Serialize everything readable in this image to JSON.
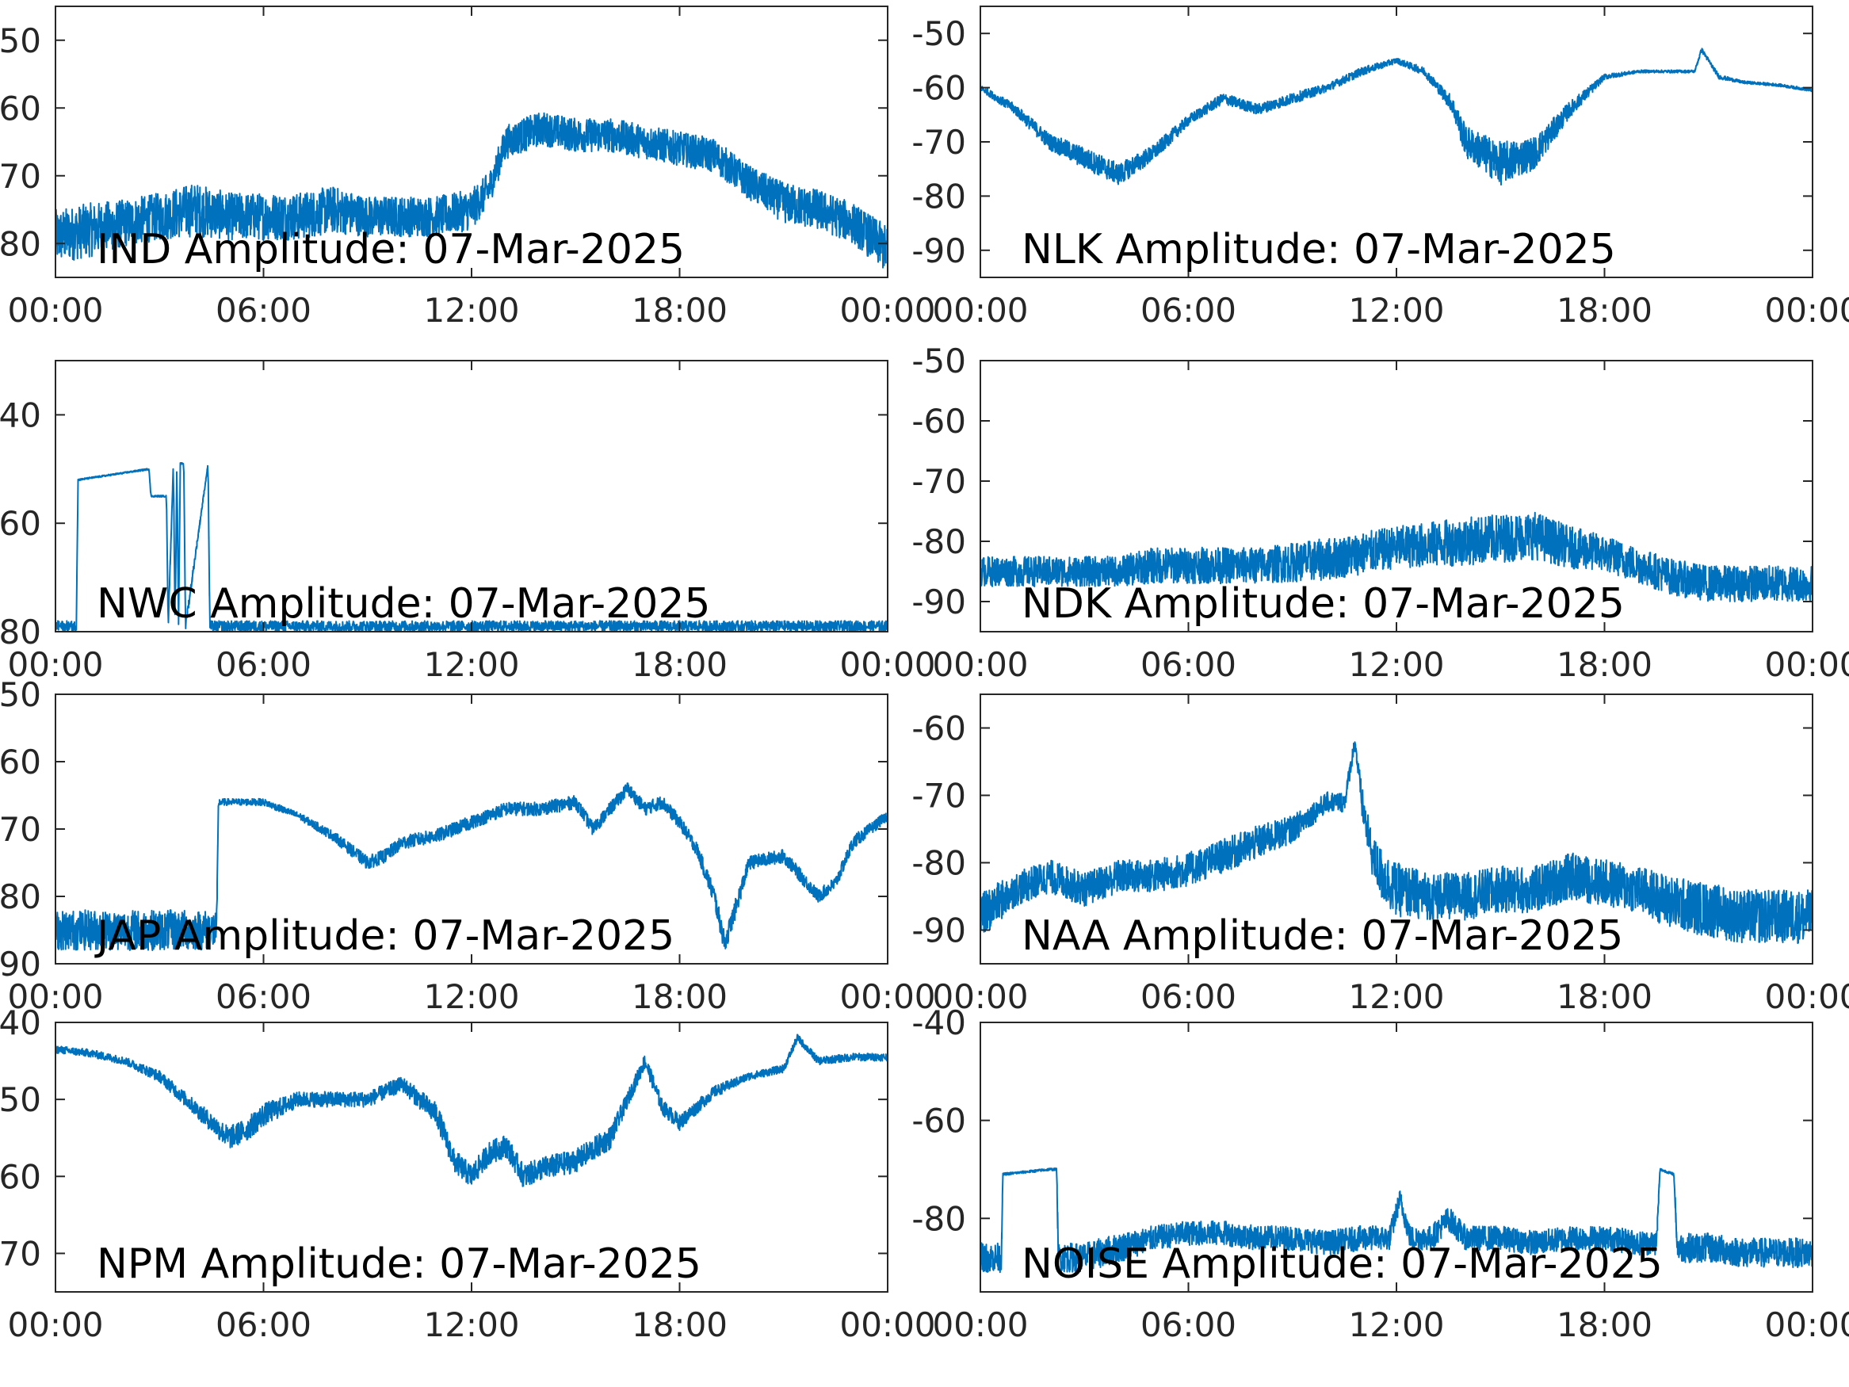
{
  "figure": {
    "line_color": "#0072BD",
    "axis_color": "#262626",
    "background": "#FFFFFF"
  },
  "chart_data": [
    {
      "type": "line",
      "title": "IND Amplitude: 07-Mar-2025",
      "xlabel": "",
      "ylabel": "",
      "xlim": [
        "00:00",
        "00:00"
      ],
      "xticks": [
        "00:00",
        "06:00",
        "12:00",
        "18:00",
        "00:00"
      ],
      "ylim": [
        -85,
        -45
      ],
      "yticks": [
        -50,
        -60,
        -70,
        -80
      ],
      "ytick_labels": [
        "50",
        "60",
        "70",
        "80"
      ],
      "grid": false,
      "series": [
        {
          "x": [
            0,
            1,
            2,
            3,
            4,
            5,
            6,
            7,
            8,
            9,
            10,
            11,
            12,
            12.5,
            13,
            14,
            15,
            16,
            17,
            18,
            19,
            20,
            21,
            22,
            23,
            24
          ],
          "y": [
            -79,
            -78,
            -77,
            -76,
            -75,
            -76,
            -76,
            -76,
            -75,
            -76,
            -76,
            -76,
            -75,
            -72,
            -65,
            -63,
            -64,
            -64,
            -65,
            -66,
            -67,
            -71,
            -74,
            -75,
            -77,
            -81
          ],
          "band": [
            8,
            8,
            7,
            7,
            8,
            7,
            7,
            7,
            7,
            6,
            6,
            6,
            6,
            5,
            5,
            5,
            5,
            5,
            5,
            5,
            5,
            5,
            6,
            6,
            6,
            7
          ]
        }
      ]
    },
    {
      "type": "line",
      "title": "NLK Amplitude: 07-Mar-2025",
      "xlabel": "",
      "ylabel": "",
      "xlim": [
        "00:00",
        "00:00"
      ],
      "xticks": [
        "00:00",
        "06:00",
        "12:00",
        "18:00",
        "00:00"
      ],
      "ylim": [
        -95,
        -45
      ],
      "yticks": [
        -50,
        -60,
        -70,
        -80,
        -90
      ],
      "ytick_labels": [
        "-50",
        "-60",
        "-70",
        "-80",
        "-90"
      ],
      "grid": false,
      "series": [
        {
          "x": [
            0,
            1,
            2,
            3,
            4,
            5,
            6,
            7,
            8,
            9,
            10,
            11,
            12,
            12.8,
            13.2,
            13.6,
            14,
            15,
            16,
            17,
            18,
            19,
            20,
            20.6,
            20.8,
            21.3,
            22,
            23,
            24
          ],
          "y": [
            -60,
            -64,
            -70,
            -73,
            -76,
            -72,
            -66,
            -62,
            -64,
            -62,
            -60,
            -57,
            -55,
            -57,
            -60,
            -63,
            -70,
            -74,
            -72,
            -64,
            -58,
            -57,
            -57,
            -57,
            -53,
            -58,
            -59,
            -59.5,
            -60.5
          ],
          "band": [
            1,
            2,
            3,
            4,
            4,
            3,
            2,
            2,
            2,
            2,
            1.5,
            1.5,
            1,
            1.5,
            2,
            3,
            6,
            8,
            6,
            3,
            1,
            0.5,
            0.5,
            0.5,
            0.8,
            0.8,
            0.5,
            0.5,
            0.5
          ]
        }
      ]
    },
    {
      "type": "line",
      "title": "NWC Amplitude: 07-Mar-2025",
      "xlabel": "",
      "ylabel": "",
      "xlim": [
        "00:00",
        "00:00"
      ],
      "xticks": [
        "00:00",
        "06:00",
        "12:00",
        "18:00",
        "00:00"
      ],
      "ylim": [
        -80,
        -30
      ],
      "yticks": [
        -40,
        -60,
        -80
      ],
      "ytick_labels": [
        "40",
        "60",
        "80"
      ],
      "grid": false,
      "series": [
        {
          "x": [
            0,
            0.6,
            0.65,
            2.7,
            2.75,
            3.2,
            3.25,
            3.4,
            3.45,
            3.5,
            3.55,
            3.6,
            3.7,
            3.75,
            4.4,
            4.45,
            24
          ],
          "y": [
            -79,
            -79,
            -52,
            -50,
            -55,
            -55,
            -79,
            -49,
            -79,
            -49,
            -79,
            -49,
            -49,
            -79,
            -49,
            -79,
            -79
          ],
          "band": [
            2,
            2,
            0.3,
            0.3,
            0.3,
            0.3,
            2,
            0.3,
            2,
            0.3,
            2,
            0.3,
            0.3,
            2,
            0.3,
            2,
            2
          ]
        }
      ]
    },
    {
      "type": "line",
      "title": "NDK Amplitude: 07-Mar-2025",
      "xlabel": "",
      "ylabel": "",
      "xlim": [
        "00:00",
        "00:00"
      ],
      "xticks": [
        "00:00",
        "06:00",
        "12:00",
        "18:00",
        "00:00"
      ],
      "ylim": [
        -95,
        -50
      ],
      "yticks": [
        -50,
        -60,
        -70,
        -80,
        -90
      ],
      "ytick_labels": [
        "-50",
        "-60",
        "-70",
        "-80",
        "-90"
      ],
      "grid": false,
      "series": [
        {
          "x": [
            0,
            2,
            4,
            5,
            6,
            8,
            10,
            12,
            14,
            16,
            17,
            18,
            19,
            20,
            21,
            22,
            23,
            24
          ],
          "y": [
            -85,
            -85,
            -85,
            -84,
            -84,
            -84,
            -83,
            -81,
            -80,
            -79,
            -81,
            -82,
            -84,
            -86,
            -87,
            -87,
            -87,
            -87
          ],
          "band": [
            5,
            5,
            5,
            6,
            6,
            6,
            7,
            7,
            8,
            8,
            7,
            6,
            6,
            6,
            6,
            6,
            6,
            6
          ]
        }
      ]
    },
    {
      "type": "line",
      "title": "JAP Amplitude: 07-Mar-2025",
      "xlabel": "",
      "ylabel": "",
      "xlim": [
        "00:00",
        "00:00"
      ],
      "xticks": [
        "00:00",
        "06:00",
        "12:00",
        "18:00",
        "00:00"
      ],
      "ylim": [
        -90,
        -50
      ],
      "yticks": [
        -50,
        -60,
        -70,
        -80,
        -90
      ],
      "ytick_labels": [
        "50",
        "60",
        "70",
        "80",
        "90"
      ],
      "grid": false,
      "series": [
        {
          "x": [
            0,
            1,
            2,
            3,
            4,
            4.65,
            4.7,
            6,
            7,
            8,
            9,
            9.5,
            10,
            11,
            12,
            13,
            14,
            15,
            15.5,
            16,
            16.5,
            17,
            17.5,
            18,
            18.5,
            19,
            19.3,
            19.6,
            20,
            21,
            22,
            22.5,
            23,
            24
          ],
          "y": [
            -85,
            -85,
            -85,
            -85,
            -85,
            -85,
            -66,
            -66,
            -68,
            -71,
            -75,
            -74,
            -72,
            -71,
            -69,
            -67,
            -67,
            -66,
            -70,
            -67,
            -64,
            -67,
            -66,
            -69,
            -73,
            -80,
            -87,
            -82,
            -75,
            -74,
            -80,
            -78,
            -72,
            -68
          ],
          "band": [
            6,
            6,
            6,
            6,
            6,
            6,
            1,
            1,
            1,
            1.5,
            2,
            2,
            2,
            2,
            2,
            2,
            2,
            2,
            2,
            2,
            2,
            2,
            2,
            2,
            2,
            3,
            3,
            3,
            2,
            2,
            2,
            2,
            2,
            1.5
          ]
        }
      ]
    },
    {
      "type": "line",
      "title": "NAA Amplitude: 07-Mar-2025",
      "xlabel": "",
      "ylabel": "",
      "xlim": [
        "00:00",
        "00:00"
      ],
      "xticks": [
        "00:00",
        "06:00",
        "12:00",
        "18:00",
        "00:00"
      ],
      "ylim": [
        -95,
        -55
      ],
      "yticks": [
        -60,
        -70,
        -80,
        -90
      ],
      "ytick_labels": [
        "-60",
        "-70",
        "-80",
        "-90"
      ],
      "grid": false,
      "series": [
        {
          "x": [
            0,
            1,
            2,
            3,
            4,
            5,
            6,
            7,
            8,
            9,
            10,
            10.5,
            10.8,
            11.0,
            11.3,
            11.6,
            12,
            13,
            14,
            15,
            16,
            17,
            18,
            19,
            20,
            21,
            22,
            23,
            24
          ],
          "y": [
            -88,
            -84,
            -82,
            -84,
            -82,
            -82,
            -81,
            -79,
            -77,
            -75,
            -71,
            -71,
            -62,
            -71,
            -79,
            -82,
            -84,
            -85,
            -85,
            -84,
            -84,
            -82,
            -83,
            -84,
            -86,
            -87,
            -88,
            -88,
            -88
          ],
          "band": [
            7,
            5,
            5,
            5,
            5,
            5,
            5,
            5,
            5,
            4,
            3,
            3,
            2,
            5,
            6,
            8,
            8,
            7,
            7,
            7,
            7,
            7,
            7,
            7,
            8,
            8,
            8,
            8,
            8
          ]
        }
      ]
    },
    {
      "type": "line",
      "title": "NPM Amplitude: 07-Mar-2025",
      "xlabel": "",
      "ylabel": "",
      "xlim": [
        "00:00",
        "00:00"
      ],
      "xticks": [
        "00:00",
        "06:00",
        "12:00",
        "18:00",
        "00:00"
      ],
      "ylim": [
        -75,
        -40
      ],
      "yticks": [
        -40,
        -50,
        -60,
        -70
      ],
      "ytick_labels": [
        "40",
        "50",
        "60",
        "70"
      ],
      "grid": false,
      "series": [
        {
          "x": [
            0,
            1,
            2,
            3,
            4,
            5,
            5.5,
            6,
            7,
            8,
            9,
            10,
            11,
            11.5,
            12,
            12.5,
            13,
            13.5,
            14,
            15,
            16,
            16.5,
            17,
            17.5,
            18,
            19,
            20,
            21,
            21.4,
            22,
            23,
            24
          ],
          "y": [
            -43.5,
            -44,
            -45,
            -47,
            -51,
            -55,
            -54,
            -52,
            -50,
            -50,
            -50,
            -48,
            -52,
            -58,
            -60,
            -57,
            -56,
            -60,
            -59,
            -58,
            -55,
            -50,
            -45,
            -51,
            -53,
            -49,
            -47,
            -46,
            -42,
            -45,
            -44.5,
            -44.5
          ],
          "band": [
            1,
            1,
            1,
            1.5,
            2,
            3,
            3,
            3,
            2,
            2,
            2,
            2,
            3,
            3,
            3,
            3,
            3,
            3,
            3,
            3,
            3,
            2,
            2,
            2,
            2,
            1.5,
            1,
            1,
            1,
            1,
            1,
            1
          ]
        }
      ]
    },
    {
      "type": "line",
      "title": "NOISE Amplitude: 07-Mar-2025",
      "xlabel": "",
      "ylabel": "",
      "xlim": [
        "00:00",
        "00:00"
      ],
      "xticks": [
        "00:00",
        "06:00",
        "12:00",
        "18:00",
        "00:00"
      ],
      "ylim": [
        -95,
        -40
      ],
      "yticks": [
        -40,
        -60,
        -80
      ],
      "ytick_labels": [
        "-40",
        "-60",
        "-80"
      ],
      "grid": false,
      "series": [
        {
          "x": [
            0,
            0.6,
            0.65,
            2.0,
            2.2,
            2.25,
            3,
            4,
            5,
            6,
            7,
            8,
            9,
            10,
            11,
            11.8,
            12.1,
            12.4,
            13,
            13.5,
            14,
            15,
            16,
            17,
            18,
            19,
            19.5,
            19.6,
            20.0,
            20.1,
            21,
            22,
            23,
            24
          ],
          "y": [
            -88,
            -88,
            -71,
            -70,
            -70,
            -88,
            -88,
            -86,
            -84,
            -83,
            -83,
            -84,
            -84,
            -85,
            -84,
            -84,
            -76,
            -84,
            -84,
            -80,
            -84,
            -84,
            -85,
            -84,
            -84,
            -85,
            -85,
            -70,
            -71,
            -86,
            -86,
            -87,
            -87,
            -87
          ],
          "band": [
            6,
            6,
            0.5,
            0.5,
            0.5,
            6,
            6,
            6,
            5,
            5,
            5,
            5,
            5,
            5,
            5,
            5,
            4,
            5,
            5,
            5,
            5,
            5,
            5,
            5,
            5,
            5,
            5,
            0.5,
            0.5,
            6,
            6,
            6,
            6,
            6
          ]
        }
      ]
    }
  ]
}
